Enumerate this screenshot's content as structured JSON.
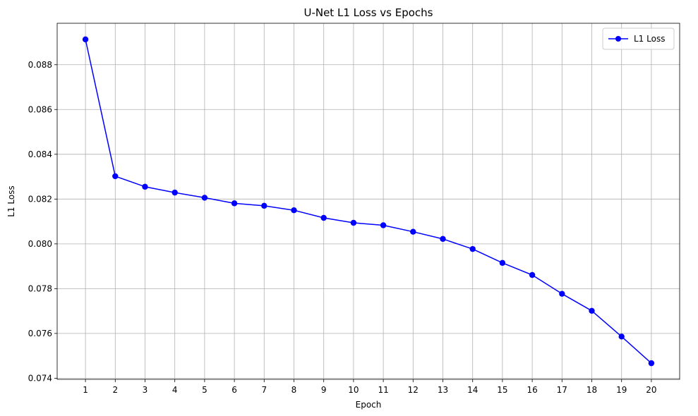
{
  "chart_data": {
    "type": "line",
    "title": "U-Net L1 Loss vs Epochs",
    "xlabel": "Epoch",
    "ylabel": "L1 Loss",
    "x": [
      1,
      2,
      3,
      4,
      5,
      6,
      7,
      8,
      9,
      10,
      11,
      12,
      13,
      14,
      15,
      16,
      17,
      18,
      19,
      20
    ],
    "series": [
      {
        "name": "L1 Loss",
        "color": "#0000ff",
        "marker": "circle",
        "values": [
          0.08913,
          0.08302,
          0.08255,
          0.08229,
          0.08206,
          0.08181,
          0.0817,
          0.0815,
          0.08116,
          0.08094,
          0.08083,
          0.08054,
          0.08022,
          0.07977,
          0.07915,
          0.07861,
          0.07777,
          0.07701,
          0.07586,
          0.07467
        ]
      }
    ],
    "xlim": [
      0.05,
      20.95
    ],
    "ylim": [
      0.07395,
      0.08985
    ],
    "xticks": [
      "1",
      "2",
      "3",
      "4",
      "5",
      "6",
      "7",
      "8",
      "9",
      "10",
      "11",
      "12",
      "13",
      "14",
      "15",
      "16",
      "17",
      "18",
      "19",
      "20"
    ],
    "yticks": [
      0.074,
      0.076,
      0.078,
      0.08,
      0.082,
      0.084,
      0.086,
      0.088
    ],
    "ytick_labels": [
      "0.074",
      "0.076",
      "0.078",
      "0.080",
      "0.082",
      "0.084",
      "0.086",
      "0.088"
    ],
    "grid": true,
    "legend_position": "top-right"
  }
}
